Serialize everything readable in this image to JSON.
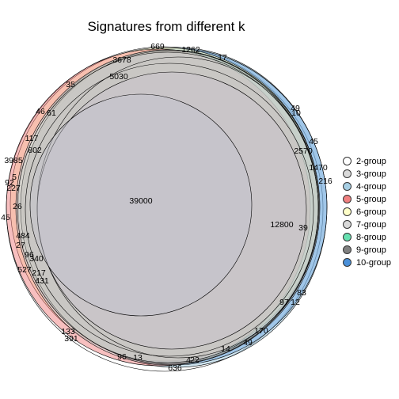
{
  "title": "Signatures from different k",
  "legend": {
    "items": [
      {
        "label": "2-group",
        "color": "#ffffff"
      },
      {
        "label": "3-group",
        "color": "#d9d9d9"
      },
      {
        "label": "4-group",
        "color": "#a6cee3"
      },
      {
        "label": "5-group",
        "color": "#f08080"
      },
      {
        "label": "6-group",
        "color": "#ffffc8"
      },
      {
        "label": "7-group",
        "color": "#d9d9d9"
      },
      {
        "label": "8-group",
        "color": "#66e0b0"
      },
      {
        "label": "9-group",
        "color": "#808080"
      },
      {
        "label": "10-group",
        "color": "#4a90d9"
      }
    ]
  },
  "regions": [
    "669",
    "1262",
    "17",
    "3678",
    "35",
    "5030",
    "49",
    "10",
    "46",
    "61",
    "45",
    "2570",
    "117",
    "1470",
    "802",
    "216",
    "3985",
    "5",
    "92",
    "227",
    "26",
    "45",
    "39000",
    "12800",
    "39",
    "484",
    "27",
    "96",
    "340",
    "527",
    "217",
    "431",
    "83",
    "97",
    "12",
    "170",
    "133",
    "391",
    "96",
    "14",
    "49",
    "4",
    "22",
    "13",
    "636"
  ]
}
